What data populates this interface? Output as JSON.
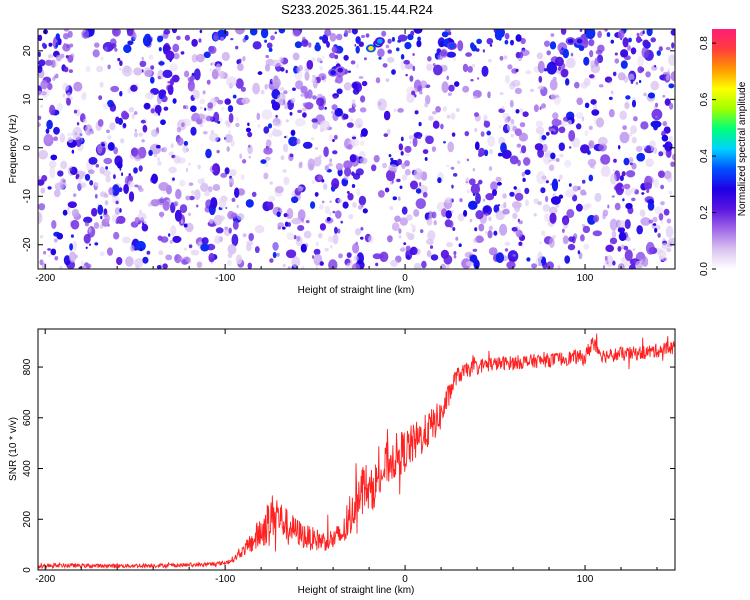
{
  "figure": {
    "title": "S233.2025.361.15.44.R24"
  },
  "chart_data": [
    {
      "type": "heatmap",
      "xlabel": "Height of straight line (km)",
      "ylabel": "Frequency (Hz)",
      "xlim": [
        -204,
        150
      ],
      "ylim": [
        -25,
        24.5
      ],
      "x_ticks": [
        -200,
        -100,
        0,
        100
      ],
      "y_ticks": [
        -20,
        -10,
        0,
        10,
        20
      ],
      "colorbar": {
        "label": "Normalized spectral amplitude",
        "range": [
          0,
          0.85
        ],
        "ticks": [
          0.0,
          0.2,
          0.4,
          0.6,
          0.8
        ],
        "colormap": [
          "#ffffff",
          "#d9c2f0",
          "#a066e8",
          "#5a14e0",
          "#1e00e6",
          "#0050ff",
          "#00d2ff",
          "#00ff78",
          "#a0ff00",
          "#ffff00",
          "#ff9600",
          "#ff3c3c",
          "#ff1e78"
        ]
      },
      "hotspots": [
        {
          "x": -40,
          "y": 15.5,
          "value": 0.3
        },
        {
          "x": -36,
          "y": 16,
          "value": 0.25
        },
        {
          "x": -19,
          "y": 20.5,
          "value": 0.65
        },
        {
          "x": -15,
          "y": 21.5,
          "value": 0.45
        },
        {
          "x": -14,
          "y": 22,
          "value": 0.4
        },
        {
          "x": 26,
          "y": 21,
          "value": 0.35
        },
        {
          "x": 92,
          "y": 22,
          "value": 0.3
        },
        {
          "x": 97,
          "y": 22,
          "value": 0.3
        }
      ]
    },
    {
      "type": "line",
      "xlabel": "Height of straight line (km)",
      "ylabel": "SNR (10 * v/v)",
      "xlim": [
        -204,
        150
      ],
      "ylim": [
        0,
        950
      ],
      "x_ticks": [
        -200,
        -100,
        0,
        100
      ],
      "y_ticks": [
        0,
        200,
        400,
        600,
        800
      ],
      "series": [
        {
          "color": "#ff2020",
          "x": [
            -204,
            -190,
            -170,
            -150,
            -130,
            -110,
            -100,
            -95,
            -90,
            -85,
            -80,
            -75,
            -72,
            -68,
            -64,
            -60,
            -55,
            -50,
            -45,
            -40,
            -35,
            -30,
            -28,
            -25,
            -22,
            -20,
            -18,
            -15,
            -12,
            -10,
            -5,
            0,
            5,
            10,
            15,
            20,
            25,
            28,
            35,
            45,
            55,
            65,
            75,
            85,
            95,
            100,
            104,
            110,
            120,
            130,
            140,
            150
          ],
          "y": [
            15,
            18,
            16,
            17,
            18,
            22,
            28,
            45,
            75,
            110,
            150,
            200,
            230,
            190,
            170,
            150,
            130,
            120,
            115,
            120,
            140,
            200,
            260,
            330,
            340,
            300,
            320,
            360,
            390,
            420,
            450,
            470,
            500,
            530,
            570,
            610,
            700,
            760,
            790,
            810,
            815,
            820,
            825,
            830,
            840,
            835,
            900,
            845,
            850,
            855,
            865,
            880
          ],
          "noise": [
            8,
            8,
            8,
            8,
            8,
            8,
            8,
            12,
            20,
            45,
            70,
            90,
            90,
            70,
            60,
            55,
            50,
            45,
            40,
            45,
            55,
            70,
            80,
            90,
            90,
            80,
            85,
            90,
            90,
            90,
            90,
            85,
            80,
            75,
            70,
            60,
            45,
            35,
            30,
            28,
            28,
            28,
            28,
            28,
            28,
            28,
            40,
            28,
            28,
            28,
            28,
            28
          ]
        }
      ]
    }
  ]
}
